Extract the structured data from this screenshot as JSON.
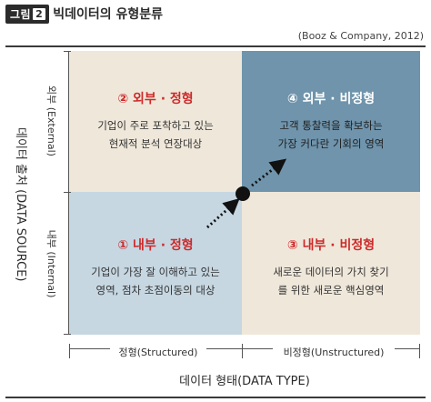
{
  "figure": {
    "badge_label": "그림",
    "badge_number": "2",
    "title": "빅데이터의 유형분류",
    "source": "(Booz & Company, 2012)"
  },
  "y_axis": {
    "title": "데이터 출처 (DATA SOURCE)",
    "top_label": "외부 (External)",
    "bottom_label": "내부 (Internal)"
  },
  "x_axis": {
    "title": "데이터 형태(DATA TYPE)",
    "left_label": "정형(Structured)",
    "right_label": "비정형(Unstructured)"
  },
  "quadrants": {
    "top_left": {
      "title": "② 외부 · 정형",
      "desc_line1": "기업이 주로 포착하고 있는",
      "desc_line2": "현재적 분석 연장대상"
    },
    "top_right": {
      "title": "④ 외부 · 비정형",
      "desc_line1": "고객 통찰력을 확보하는",
      "desc_line2": "가장 커다란 기회의 영역"
    },
    "bottom_left": {
      "title": "① 내부 · 정형",
      "desc_line1": "기업이 가장 잘 이해하고 있는",
      "desc_line2": "영역, 점차 초점이동의 대상"
    },
    "bottom_right": {
      "title": "③ 내부 · 비정형",
      "desc_line1": "새로운 데이터의 가치 찾기",
      "desc_line2": "를 위한 새로운 핵심영역"
    }
  },
  "colors": {
    "external_structured": "#efe7da",
    "external_unstructured": "#6f94ac",
    "internal_structured": "#c6d7e2",
    "internal_unstructured": "#efe7da",
    "quadrant_title": "#cc2a2a"
  }
}
